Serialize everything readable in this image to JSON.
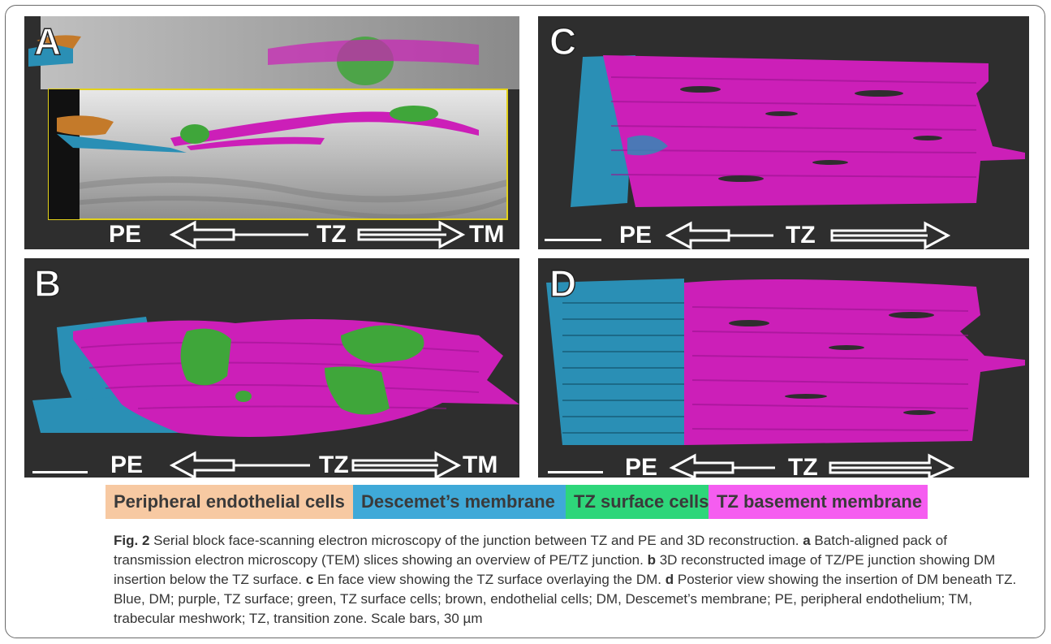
{
  "panels": {
    "A": {
      "letter": "A",
      "labels": {
        "pe": "PE",
        "tz": "TZ",
        "tm": "TM"
      }
    },
    "B": {
      "letter": "B",
      "labels": {
        "pe": "PE",
        "tz": "TZ",
        "tm": "TM"
      }
    },
    "C": {
      "letter": "C",
      "labels": {
        "pe": "PE",
        "tz": "TZ"
      }
    },
    "D": {
      "letter": "D",
      "labels": {
        "pe": "PE",
        "tz": "TZ"
      }
    }
  },
  "legend": [
    {
      "label": "Peripheral endothelial cells",
      "color": "#f7c9a2"
    },
    {
      "label": "Descemet’s membrane",
      "color": "#3fa9d8"
    },
    {
      "label": "TZ surface cells",
      "color": "#2ed67a"
    },
    {
      "label": "TZ basement membrane",
      "color": "#f55df0"
    }
  ],
  "colors": {
    "dm_blue": "#2a8fb5",
    "tz_magenta": "#cc1fb8",
    "cells_green": "#3fa63a",
    "endothelial_brown": "#c47a2a",
    "panel_bg": "#2e2e2e"
  },
  "caption": {
    "fig_label": "Fig. 2",
    "lead": "Serial block face-scanning electron microscopy of the junction between TZ and PE and 3D reconstruction.",
    "a_letter": "a",
    "a_text": "Batch-aligned pack of transmission electron microscopy (TEM) slices showing an overview of PE/TZ junction.",
    "b_letter": "b",
    "b_text": "3D reconstructed image of TZ/PE junction showing DM insertion below the TZ surface.",
    "c_letter": "c",
    "c_text": "En face view showing the TZ surface overlaying the DM.",
    "d_letter": "d",
    "d_text": "Posterior view showing the insertion of DM beneath TZ. Blue, DM; purple, TZ surface; green, TZ surface cells; brown, endothelial cells; DM, Descemet’s membrane; PE, peripheral endothelium; TM, trabecular meshwork; TZ, transition zone. Scale bars, 30 µm"
  }
}
